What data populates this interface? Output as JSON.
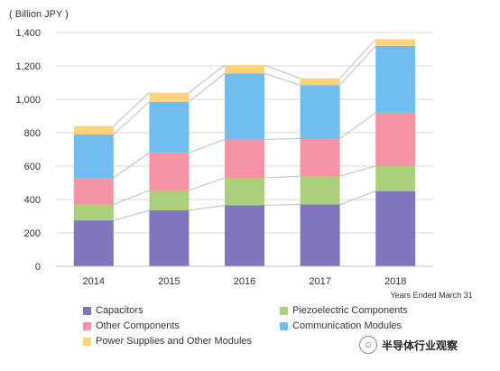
{
  "chart_data": {
    "type": "bar",
    "stacked": true,
    "ylabel": "( Billion JPY )",
    "xlabel": "Years Ended March 31",
    "categories": [
      "2014",
      "2015",
      "2016",
      "2017",
      "2018"
    ],
    "ylim": [
      0,
      1400
    ],
    "yticks": [
      0,
      200,
      400,
      600,
      800,
      1000,
      1200,
      1400
    ],
    "ytick_labels": [
      "0",
      "200",
      "400",
      "600",
      "800",
      "1,000",
      "1,200",
      "1,400"
    ],
    "grid": true,
    "connector_lines": true,
    "legend_position": "bottom",
    "series": [
      {
        "name": "Capacitors",
        "color": "#8176be",
        "values": [
          275,
          335,
          365,
          370,
          450
        ]
      },
      {
        "name": "Piezoelectric Components",
        "color": "#a9d17b",
        "values": [
          95,
          120,
          165,
          170,
          150
        ]
      },
      {
        "name": "Other Components",
        "color": "#f592a4",
        "values": [
          160,
          225,
          230,
          225,
          320
        ]
      },
      {
        "name": "Communication Modules",
        "color": "#70bdf0",
        "values": [
          260,
          305,
          395,
          320,
          400
        ]
      },
      {
        "name": "Power Supplies and Other Modules",
        "color": "#fdd27c",
        "values": [
          50,
          55,
          50,
          40,
          40
        ]
      }
    ]
  },
  "watermark": {
    "text": "半导体行业观察",
    "icon": "wechat-icon"
  }
}
